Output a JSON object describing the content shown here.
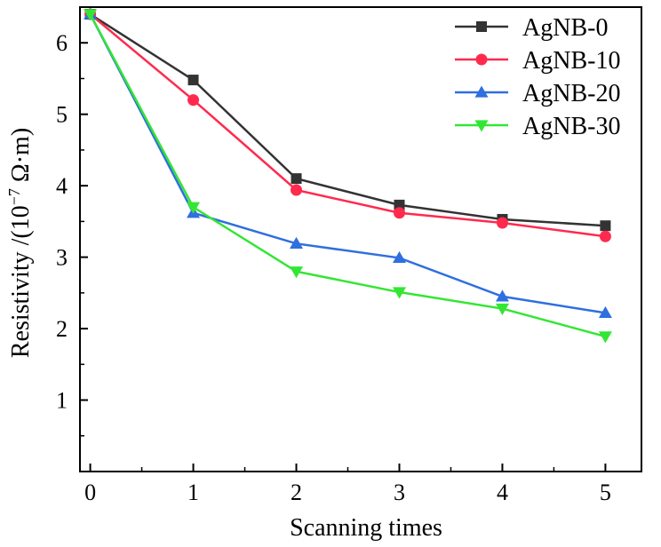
{
  "chart_data": {
    "type": "line",
    "title": "",
    "xlabel": "Scanning times",
    "ylabel": "Resistivity /(10",
    "ylabel_exponent": "−7",
    "ylabel_unit": " Ω·m)",
    "x": [
      0,
      1,
      2,
      3,
      4,
      5
    ],
    "xlim": [
      -0.1,
      5.35
    ],
    "ylim": [
      0,
      6.5
    ],
    "xticks": [
      0,
      1,
      2,
      3,
      4,
      5
    ],
    "yticks": [
      1,
      2,
      3,
      4,
      5,
      6
    ],
    "legend_position": "top-right",
    "series": [
      {
        "name": "AgNB-0",
        "color": "#333333",
        "marker": "square",
        "values": [
          6.4,
          5.48,
          4.1,
          3.73,
          3.53,
          3.44
        ]
      },
      {
        "name": "AgNB-10",
        "color": "#ff2a4d",
        "marker": "circle",
        "values": [
          6.4,
          5.2,
          3.94,
          3.62,
          3.48,
          3.29
        ]
      },
      {
        "name": "AgNB-20",
        "color": "#2f6fdf",
        "marker": "triangle-up",
        "values": [
          6.4,
          3.62,
          3.19,
          2.99,
          2.45,
          2.22
        ]
      },
      {
        "name": "AgNB-30",
        "color": "#33e633",
        "marker": "triangle-down",
        "values": [
          6.4,
          3.7,
          2.8,
          2.51,
          2.28,
          1.89
        ]
      }
    ]
  }
}
